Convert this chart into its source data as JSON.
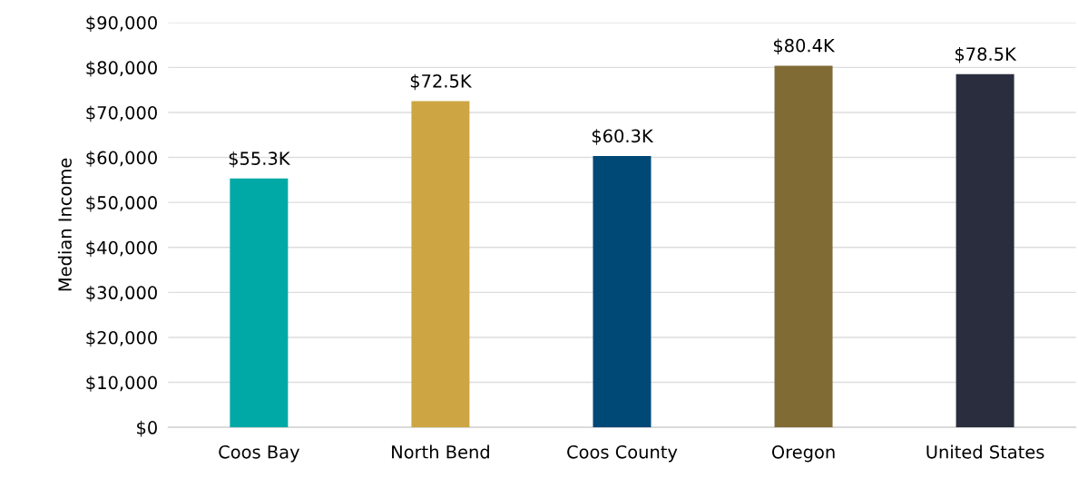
{
  "chart_data": {
    "type": "bar",
    "ylabel": "Median Income",
    "categories": [
      "Coos Bay",
      "North Bend",
      "Coos County",
      "Oregon",
      "United States"
    ],
    "values": [
      55300,
      72500,
      60300,
      80400,
      78500
    ],
    "colors": [
      "#00a9a5",
      "#cda643",
      "#004876",
      "#806b35",
      "#2a2d3e"
    ],
    "value_labels": [
      "$55.3K",
      "$72.5K",
      "$60.3K",
      "$80.4K",
      "$78.5K"
    ],
    "ylim": [
      0,
      90000
    ],
    "yticks": [
      {
        "value": 0,
        "label": "$0"
      },
      {
        "value": 10000,
        "label": "$10,000"
      },
      {
        "value": 20000,
        "label": "$20,000"
      },
      {
        "value": 30000,
        "label": "$30,000"
      },
      {
        "value": 40000,
        "label": "$40,000"
      },
      {
        "value": 50000,
        "label": "$50,000"
      },
      {
        "value": 60000,
        "label": "$60,000"
      },
      {
        "value": 70000,
        "label": "$70,000"
      },
      {
        "value": 80000,
        "label": "$80,000"
      },
      {
        "value": 90000,
        "label": "$90,000"
      }
    ],
    "grid": "y",
    "legend": false
  }
}
